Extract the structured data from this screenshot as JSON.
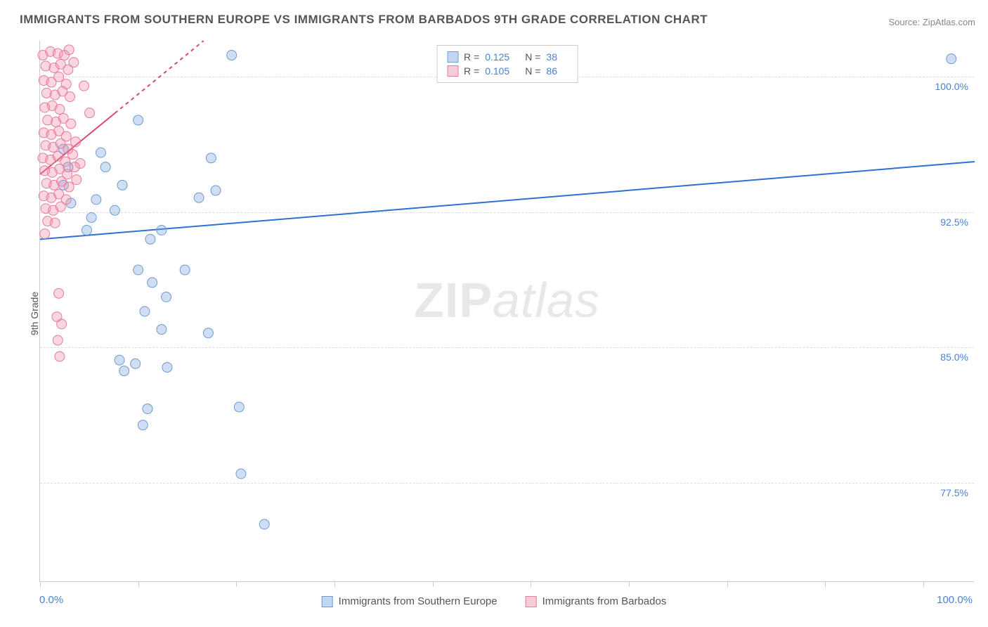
{
  "title": "IMMIGRANTS FROM SOUTHERN EUROPE VS IMMIGRANTS FROM BARBADOS 9TH GRADE CORRELATION CHART",
  "source": "Source: ZipAtlas.com",
  "ylabel": "9th Grade",
  "watermark_bold": "ZIP",
  "watermark_light": "atlas",
  "chart": {
    "type": "scatter",
    "background_color": "#ffffff",
    "grid_color": "#dddddd",
    "axis_color": "#cccccc",
    "xlim": [
      0,
      100
    ],
    "ylim": [
      72,
      102
    ],
    "x_tick_positions": [
      0,
      10.5,
      21,
      31.5,
      42,
      52.5,
      63,
      73.5,
      84,
      94.5
    ],
    "y_gridlines": [
      {
        "value": 100.0,
        "label": "100.0%"
      },
      {
        "value": 92.5,
        "label": "92.5%"
      },
      {
        "value": 85.0,
        "label": "85.0%"
      },
      {
        "value": 77.5,
        "label": "77.5%"
      }
    ],
    "y_tick_color": "#4a80d6",
    "x_axis_labels": {
      "left": "0.0%",
      "right": "100.0%"
    },
    "series": [
      {
        "name": "Immigrants from Southern Europe",
        "marker_color_fill": "rgba(120,160,220,0.35)",
        "marker_color_stroke": "#6f9ad4",
        "marker_radius": 7,
        "swatch_fill": "#c4d5ef",
        "swatch_border": "#6f9ad4",
        "correlation_R": "0.125",
        "correlation_N": "38",
        "trend": {
          "x1": 0,
          "y1": 91.0,
          "x2": 100,
          "y2": 95.3,
          "color": "#2d71d2",
          "width": 2,
          "dash_after_x": null
        },
        "points": [
          {
            "x": 20.5,
            "y": 101.2
          },
          {
            "x": 97.5,
            "y": 101.0
          },
          {
            "x": 2.5,
            "y": 96.0
          },
          {
            "x": 6.5,
            "y": 95.8
          },
          {
            "x": 10.5,
            "y": 97.6
          },
          {
            "x": 3.0,
            "y": 95.0
          },
          {
            "x": 7.0,
            "y": 95.0
          },
          {
            "x": 18.3,
            "y": 95.5
          },
          {
            "x": 2.5,
            "y": 94.0
          },
          {
            "x": 8.8,
            "y": 94.0
          },
          {
            "x": 3.3,
            "y": 93.0
          },
          {
            "x": 6.0,
            "y": 93.2
          },
          {
            "x": 17.0,
            "y": 93.3
          },
          {
            "x": 18.8,
            "y": 93.7
          },
          {
            "x": 5.5,
            "y": 92.2
          },
          {
            "x": 8.0,
            "y": 92.6
          },
          {
            "x": 5.0,
            "y": 91.5
          },
          {
            "x": 11.8,
            "y": 91.0
          },
          {
            "x": 13.0,
            "y": 91.5
          },
          {
            "x": 10.5,
            "y": 89.3
          },
          {
            "x": 15.5,
            "y": 89.3
          },
          {
            "x": 12.0,
            "y": 88.6
          },
          {
            "x": 13.5,
            "y": 87.8
          },
          {
            "x": 11.2,
            "y": 87.0
          },
          {
            "x": 13.0,
            "y": 86.0
          },
          {
            "x": 18.0,
            "y": 85.8
          },
          {
            "x": 8.5,
            "y": 84.3
          },
          {
            "x": 10.2,
            "y": 84.1
          },
          {
            "x": 9.0,
            "y": 83.7
          },
          {
            "x": 13.6,
            "y": 83.9
          },
          {
            "x": 11.5,
            "y": 81.6
          },
          {
            "x": 21.3,
            "y": 81.7
          },
          {
            "x": 11.0,
            "y": 80.7
          },
          {
            "x": 21.5,
            "y": 78.0
          },
          {
            "x": 24.0,
            "y": 75.2
          }
        ]
      },
      {
        "name": "Immigrants from Barbados",
        "marker_color_fill": "rgba(240,140,165,0.35)",
        "marker_color_stroke": "#e87c9b",
        "marker_radius": 7,
        "swatch_fill": "#f6ccd8",
        "swatch_border": "#e87c9b",
        "correlation_R": "0.105",
        "correlation_N": "86",
        "trend": {
          "x1": 0,
          "y1": 94.6,
          "x2": 17.5,
          "y2": 102.0,
          "color": "#d64a6e",
          "width": 2,
          "dash_after_x": 8.0
        },
        "points": [
          {
            "x": 0.3,
            "y": 101.2
          },
          {
            "x": 1.1,
            "y": 101.4
          },
          {
            "x": 1.9,
            "y": 101.3
          },
          {
            "x": 2.6,
            "y": 101.2
          },
          {
            "x": 3.1,
            "y": 101.5
          },
          {
            "x": 0.6,
            "y": 100.6
          },
          {
            "x": 1.5,
            "y": 100.5
          },
          {
            "x": 2.2,
            "y": 100.7
          },
          {
            "x": 3.0,
            "y": 100.4
          },
          {
            "x": 3.6,
            "y": 100.8
          },
          {
            "x": 0.4,
            "y": 99.8
          },
          {
            "x": 1.2,
            "y": 99.7
          },
          {
            "x": 2.0,
            "y": 100.0
          },
          {
            "x": 2.8,
            "y": 99.6
          },
          {
            "x": 4.7,
            "y": 99.5
          },
          {
            "x": 0.7,
            "y": 99.1
          },
          {
            "x": 1.6,
            "y": 99.0
          },
          {
            "x": 2.4,
            "y": 99.2
          },
          {
            "x": 3.2,
            "y": 98.9
          },
          {
            "x": 0.5,
            "y": 98.3
          },
          {
            "x": 1.3,
            "y": 98.4
          },
          {
            "x": 2.1,
            "y": 98.2
          },
          {
            "x": 5.3,
            "y": 98.0
          },
          {
            "x": 0.8,
            "y": 97.6
          },
          {
            "x": 1.7,
            "y": 97.5
          },
          {
            "x": 2.5,
            "y": 97.7
          },
          {
            "x": 3.3,
            "y": 97.4
          },
          {
            "x": 0.4,
            "y": 96.9
          },
          {
            "x": 1.2,
            "y": 96.8
          },
          {
            "x": 2.0,
            "y": 97.0
          },
          {
            "x": 2.8,
            "y": 96.7
          },
          {
            "x": 0.6,
            "y": 96.2
          },
          {
            "x": 1.4,
            "y": 96.1
          },
          {
            "x": 2.2,
            "y": 96.3
          },
          {
            "x": 3.0,
            "y": 96.0
          },
          {
            "x": 3.8,
            "y": 96.4
          },
          {
            "x": 0.3,
            "y": 95.5
          },
          {
            "x": 1.1,
            "y": 95.4
          },
          {
            "x": 1.9,
            "y": 95.6
          },
          {
            "x": 2.7,
            "y": 95.3
          },
          {
            "x": 3.5,
            "y": 95.7
          },
          {
            "x": 4.3,
            "y": 95.2
          },
          {
            "x": 0.5,
            "y": 94.8
          },
          {
            "x": 1.3,
            "y": 94.7
          },
          {
            "x": 2.1,
            "y": 94.9
          },
          {
            "x": 2.9,
            "y": 94.6
          },
          {
            "x": 3.7,
            "y": 95.0
          },
          {
            "x": 0.7,
            "y": 94.1
          },
          {
            "x": 1.5,
            "y": 94.0
          },
          {
            "x": 2.3,
            "y": 94.2
          },
          {
            "x": 3.1,
            "y": 93.9
          },
          {
            "x": 3.9,
            "y": 94.3
          },
          {
            "x": 0.4,
            "y": 93.4
          },
          {
            "x": 1.2,
            "y": 93.3
          },
          {
            "x": 2.0,
            "y": 93.5
          },
          {
            "x": 2.8,
            "y": 93.2
          },
          {
            "x": 0.6,
            "y": 92.7
          },
          {
            "x": 1.4,
            "y": 92.6
          },
          {
            "x": 2.2,
            "y": 92.8
          },
          {
            "x": 0.8,
            "y": 92.0
          },
          {
            "x": 1.6,
            "y": 91.9
          },
          {
            "x": 0.5,
            "y": 91.3
          },
          {
            "x": 2.0,
            "y": 88.0
          },
          {
            "x": 1.8,
            "y": 86.7
          },
          {
            "x": 2.3,
            "y": 86.3
          },
          {
            "x": 1.9,
            "y": 85.4
          },
          {
            "x": 2.1,
            "y": 84.5
          }
        ]
      }
    ],
    "top_legend_labels": {
      "R": "R =",
      "N": "N ="
    },
    "label_fontsize": 14,
    "title_fontsize": 17
  }
}
